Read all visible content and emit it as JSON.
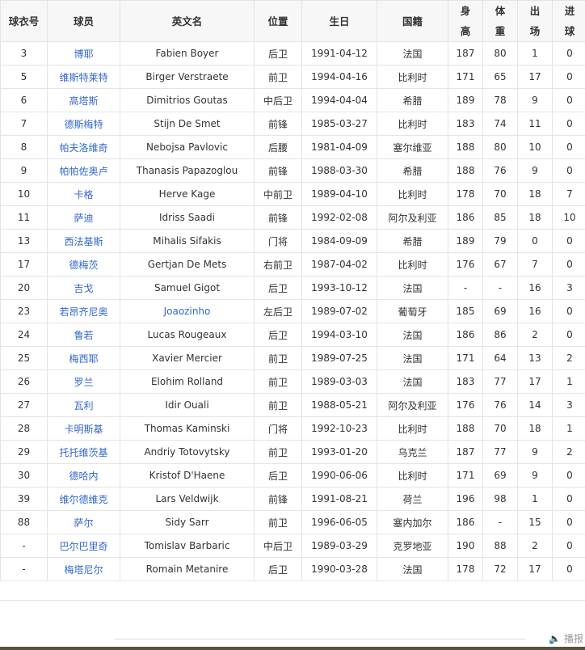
{
  "headers": [
    "球衣号",
    "球员",
    "英文名",
    "位置",
    "生日",
    "国籍",
    "身高",
    "体重",
    "出场",
    "进球"
  ],
  "rows": [
    [
      "3",
      "博耶",
      "Fabien Boyer",
      "后卫",
      "1991-04-12",
      "法国",
      "187",
      "80",
      "1",
      "0"
    ],
    [
      "5",
      "维斯特莱特",
      "Birger Verstraete",
      "前卫",
      "1994-04-16",
      "比利时",
      "171",
      "65",
      "17",
      "0"
    ],
    [
      "6",
      "高塔斯",
      "Dimitrios Goutas",
      "中后卫",
      "1994-04-04",
      "希腊",
      "189",
      "78",
      "9",
      "0"
    ],
    [
      "7",
      "德斯梅特",
      "Stijn De Smet",
      "前锋",
      "1985-03-27",
      "比利时",
      "183",
      "74",
      "11",
      "0"
    ],
    [
      "8",
      "帕夫洛维奇",
      "Nebojsa Pavlovic",
      "后腰",
      "1981-04-09",
      "塞尔维亚",
      "188",
      "80",
      "10",
      "0"
    ],
    [
      "9",
      "帕帕佐奥卢",
      "Thanasis Papazoglou",
      "前锋",
      "1988-03-30",
      "希腊",
      "188",
      "76",
      "9",
      "0"
    ],
    [
      "10",
      "卡格",
      "Herve Kage",
      "中前卫",
      "1989-04-10",
      "比利时",
      "178",
      "70",
      "18",
      "7"
    ],
    [
      "11",
      "萨迪",
      "Idriss Saadi",
      "前锋",
      "1992-02-08",
      "阿尔及利亚",
      "186",
      "85",
      "18",
      "10"
    ],
    [
      "13",
      "西法基斯",
      "Mihalis Sifakis",
      "门将",
      "1984-09-09",
      "希腊",
      "189",
      "79",
      "0",
      "0"
    ],
    [
      "17",
      "德梅茨",
      "Gertjan De Mets",
      "右前卫",
      "1987-04-02",
      "比利时",
      "176",
      "67",
      "7",
      "0"
    ],
    [
      "20",
      "吉戈",
      "Samuel Gigot",
      "后卫",
      "1993-10-12",
      "法国",
      "-",
      "-",
      "16",
      "3"
    ],
    [
      "23",
      "若昂齐尼奥",
      "Joaozinho",
      "左后卫",
      "1989-07-02",
      "葡萄牙",
      "185",
      "69",
      "16",
      "0"
    ],
    [
      "24",
      "鲁若",
      "Lucas Rougeaux",
      "后卫",
      "1994-03-10",
      "法国",
      "186",
      "86",
      "2",
      "0"
    ],
    [
      "25",
      "梅西耶",
      "Xavier Mercier",
      "前卫",
      "1989-07-25",
      "法国",
      "171",
      "64",
      "13",
      "2"
    ],
    [
      "26",
      "罗兰",
      "Elohim Rolland",
      "前卫",
      "1989-03-03",
      "法国",
      "183",
      "77",
      "17",
      "1"
    ],
    [
      "27",
      "瓦利",
      "Idir Ouali",
      "前卫",
      "1988-05-21",
      "阿尔及利亚",
      "176",
      "76",
      "14",
      "3"
    ],
    [
      "28",
      "卡明斯基",
      "Thomas Kaminski",
      "门将",
      "1992-10-23",
      "比利时",
      "188",
      "70",
      "18",
      "1"
    ],
    [
      "29",
      "托托维茨基",
      "Andriy Totovytsky",
      "前卫",
      "1993-01-20",
      "乌克兰",
      "187",
      "77",
      "9",
      "2"
    ],
    [
      "30",
      "德哈内",
      "Kristof D'Haene",
      "后卫",
      "1990-06-06",
      "比利时",
      "171",
      "69",
      "9",
      "0"
    ],
    [
      "39",
      "维尔德维克",
      "Lars Veldwijk",
      "前锋",
      "1991-08-21",
      "荷兰",
      "196",
      "98",
      "1",
      "0"
    ],
    [
      "88",
      "萨尔",
      "Sidy Sarr",
      "前卫",
      "1996-06-05",
      "塞内加尔",
      "186",
      "-",
      "15",
      "0"
    ],
    [
      "-",
      "巴尔巴里奇",
      "Tomislav Barbaric",
      "中后卫",
      "1989-03-29",
      "克罗地亚",
      "190",
      "88",
      "2",
      "0"
    ],
    [
      "-",
      "梅塔尼尔",
      "Romain Metanire",
      "后卫",
      "1990-03-28",
      "法国",
      "178",
      "72",
      "17",
      "0"
    ]
  ],
  "linked_english": [
    "Joaozinho"
  ],
  "broadcast_label": "播报",
  "colors": {
    "link": "#3366cc",
    "header_bg": "#f7f7f7"
  }
}
